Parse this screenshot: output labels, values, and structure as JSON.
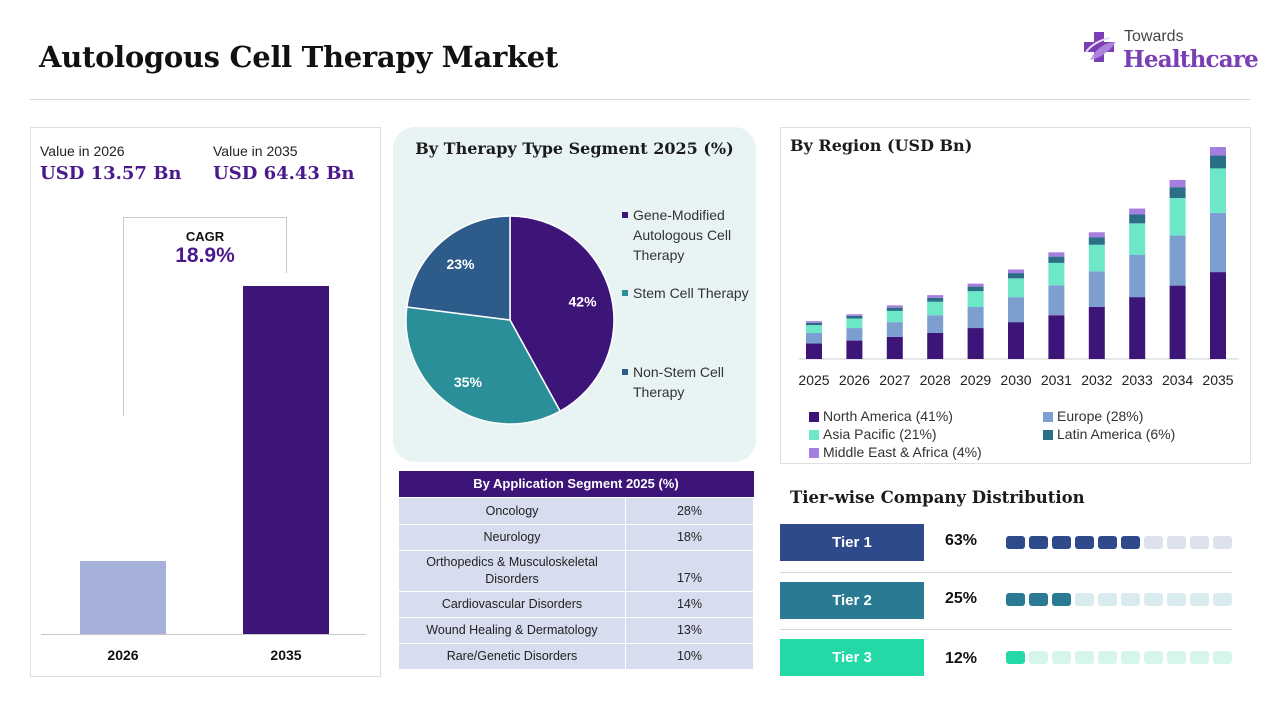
{
  "header": {
    "title": "Autologous Cell Therapy Market",
    "brand_top": "Towards",
    "brand_main": "Healthcare"
  },
  "market_value": {
    "label_2026": "Value in 2026",
    "amount_2026": "USD 13.57 Bn",
    "label_2035": "Value in 2035",
    "amount_2035": "USD 64.43 Bn",
    "cagr_label": "CAGR",
    "cagr_value": "18.9%"
  },
  "pie_title": "By Therapy Type Segment 2025 (%)",
  "pie_legend": [
    {
      "label": "Gene-Modified Autologous Cell Therapy",
      "color": "#3d1478"
    },
    {
      "label": "Stem Cell Therapy",
      "color": "#2a8f98"
    },
    {
      "label": "Non-Stem Cell Therapy",
      "color": "#2e5c8a"
    }
  ],
  "application": {
    "title": "By Application Segment 2025 (%)",
    "rows": [
      {
        "name": "Oncology",
        "pct": "28%"
      },
      {
        "name": "Neurology",
        "pct": "18%"
      },
      {
        "name": "Orthopedics & Musculoskeletal Disorders",
        "pct": "17%"
      },
      {
        "name": "Cardiovascular Disorders",
        "pct": "14%"
      },
      {
        "name": "Wound Healing & Dermatology",
        "pct": "13%"
      },
      {
        "name": "Rare/Genetic Disorders",
        "pct": "10%"
      }
    ]
  },
  "region_title": "By Region (USD Bn)",
  "region_legend": [
    {
      "label": "North America (41%)",
      "color": "#3d1478"
    },
    {
      "label": "Europe (28%)",
      "color": "#7d9fd0"
    },
    {
      "label": "Asia Pacific (21%)",
      "color": "#6ee6c8"
    },
    {
      "label": "Latin America (6%)",
      "color": "#2a6e88"
    },
    {
      "label": "Middle East & Africa (4%)",
      "color": "#a67ee0"
    }
  ],
  "tiers": {
    "title": "Tier-wise Company Distribution",
    "items": [
      {
        "label": "Tier 1",
        "pct": "63%",
        "value": 63,
        "color": "#2f4a8a",
        "light": "#dde1ee"
      },
      {
        "label": "Tier 2",
        "pct": "25%",
        "value": 25,
        "color": "#2b7a94",
        "light": "#d9ebef"
      },
      {
        "label": "Tier 3",
        "pct": "12%",
        "value": 12,
        "color": "#24d9a8",
        "light": "#d6f5ec"
      }
    ]
  },
  "chart_data": [
    {
      "type": "bar",
      "categories": [
        "2026",
        "2035"
      ],
      "values": [
        13.57,
        64.43
      ],
      "colors": [
        "#a5b1da",
        "#3d1478"
      ]
    },
    {
      "type": "pie",
      "title": "By Therapy Type Segment 2025 (%)",
      "categories": [
        "Gene-Modified Autologous Cell Therapy",
        "Stem Cell Therapy",
        "Non-Stem Cell Therapy"
      ],
      "values": [
        42,
        35,
        23
      ],
      "labels": [
        "42%",
        "35%",
        "23%"
      ],
      "colors": [
        "#3d1478",
        "#2a8f98",
        "#2e5c8a"
      ]
    },
    {
      "type": "bar",
      "stacked": true,
      "title": "By Region (USD Bn)",
      "categories": [
        "2025",
        "2026",
        "2027",
        "2028",
        "2029",
        "2030",
        "2031",
        "2032",
        "2033",
        "2034",
        "2035"
      ],
      "series": [
        {
          "name": "North America (41%)",
          "values": [
            4.7,
            5.6,
            6.7,
            7.9,
            9.4,
            11.2,
            13.3,
            15.8,
            18.8,
            22.3,
            26.4
          ]
        },
        {
          "name": "Europe (28%)",
          "values": [
            3.2,
            3.8,
            4.5,
            5.4,
            6.4,
            7.6,
            9.1,
            10.8,
            12.8,
            15.2,
            18.0
          ]
        },
        {
          "name": "Asia Pacific (21%)",
          "values": [
            2.4,
            2.9,
            3.4,
            4.1,
            4.8,
            5.7,
            6.8,
            8.1,
            9.6,
            11.4,
            13.5
          ]
        },
        {
          "name": "Latin America (6%)",
          "values": [
            0.7,
            0.8,
            1.0,
            1.2,
            1.4,
            1.6,
            1.9,
            2.3,
            2.7,
            3.3,
            3.9
          ]
        },
        {
          "name": "Middle East & Africa (4%)",
          "values": [
            0.5,
            0.5,
            0.7,
            0.8,
            0.9,
            1.1,
            1.3,
            1.5,
            1.8,
            2.2,
            2.6
          ]
        }
      ],
      "colors": [
        "#3d1478",
        "#7d9fd0",
        "#6ee6c8",
        "#2a6e88",
        "#a67ee0"
      ]
    }
  ]
}
